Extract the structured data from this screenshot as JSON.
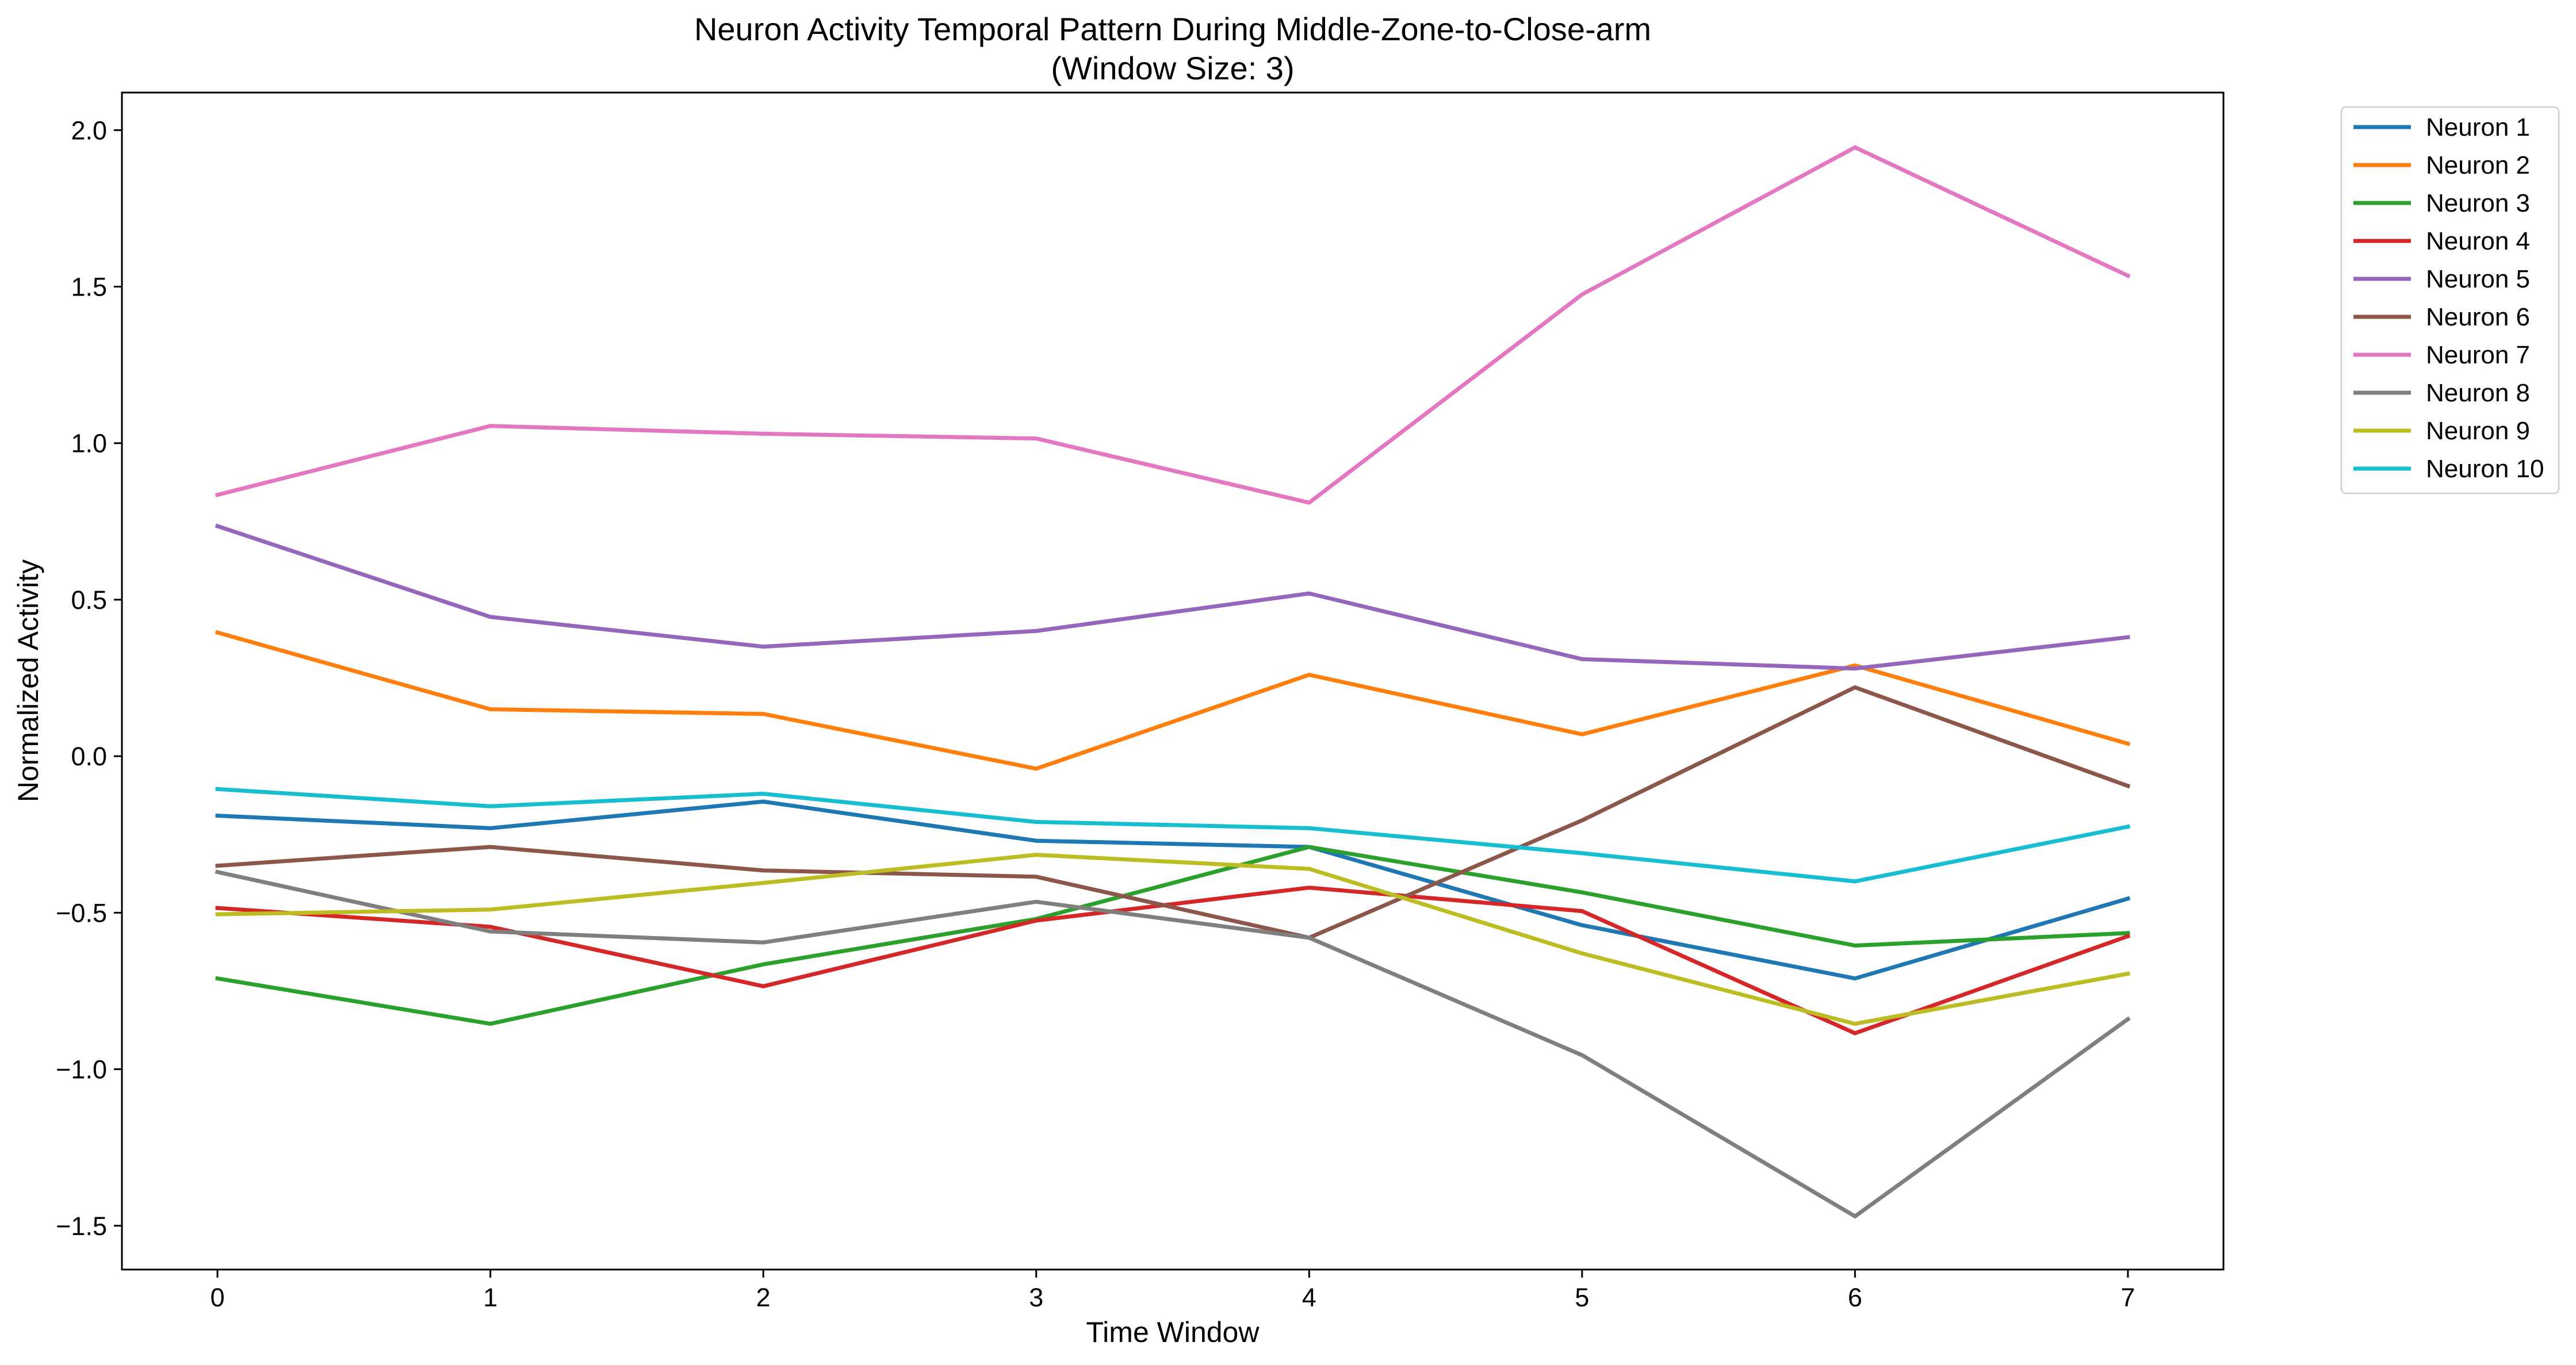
{
  "chart_data": {
    "type": "line",
    "title": "Neuron Activity Temporal Pattern During Middle-Zone-to-Close-arm",
    "subtitle": "(Window Size: 3)",
    "xlabel": "Time Window",
    "ylabel": "Normalized Activity",
    "x": [
      0,
      1,
      2,
      3,
      4,
      5,
      6,
      7
    ],
    "x_ticks": [
      "0",
      "1",
      "2",
      "3",
      "4",
      "5",
      "6",
      "7"
    ],
    "xlim": [
      -0.35,
      7.35
    ],
    "y_ticks": [
      "2.0",
      "1.5",
      "1.0",
      "0.5",
      "0.0",
      "−0.5",
      "−1.0",
      "−1.5"
    ],
    "y_tick_values": [
      2.0,
      1.5,
      1.0,
      0.5,
      0.0,
      -0.5,
      -1.0,
      -1.5
    ],
    "ylim": [
      -1.64,
      2.12
    ],
    "grid": false,
    "legend_position": "outside-top-right",
    "series": [
      {
        "name": "Neuron 1",
        "color": "#1f77b4",
        "values": [
          -0.19,
          -0.23,
          -0.145,
          -0.27,
          -0.29,
          -0.54,
          -0.71,
          -0.455
        ]
      },
      {
        "name": "Neuron 2",
        "color": "#ff7f0e",
        "values": [
          0.395,
          0.15,
          0.135,
          -0.04,
          0.26,
          0.07,
          0.29,
          0.04
        ]
      },
      {
        "name": "Neuron 3",
        "color": "#2ca02c",
        "values": [
          -0.71,
          -0.855,
          -0.665,
          -0.52,
          -0.29,
          -0.435,
          -0.605,
          -0.565
        ]
      },
      {
        "name": "Neuron 4",
        "color": "#d62728",
        "values": [
          -0.485,
          -0.545,
          -0.735,
          -0.525,
          -0.42,
          -0.495,
          -0.885,
          -0.575
        ]
      },
      {
        "name": "Neuron 5",
        "color": "#9467bd",
        "values": [
          0.735,
          0.445,
          0.35,
          0.4,
          0.52,
          0.31,
          0.28,
          0.38
        ]
      },
      {
        "name": "Neuron 6",
        "color": "#8c564b",
        "values": [
          -0.35,
          -0.29,
          -0.365,
          -0.385,
          -0.58,
          -0.205,
          0.22,
          -0.095
        ]
      },
      {
        "name": "Neuron 7",
        "color": "#e377c2",
        "values": [
          0.835,
          1.055,
          1.03,
          1.015,
          0.81,
          1.475,
          1.945,
          1.535
        ]
      },
      {
        "name": "Neuron 8",
        "color": "#7f7f7f",
        "values": [
          -0.37,
          -0.56,
          -0.595,
          -0.465,
          -0.58,
          -0.955,
          -1.47,
          -0.84
        ]
      },
      {
        "name": "Neuron 9",
        "color": "#bcbd22",
        "values": [
          -0.505,
          -0.49,
          -0.405,
          -0.315,
          -0.36,
          -0.63,
          -0.855,
          -0.695
        ]
      },
      {
        "name": "Neuron 10",
        "color": "#17becf",
        "values": [
          -0.105,
          -0.16,
          -0.12,
          -0.21,
          -0.23,
          -0.31,
          -0.4,
          -0.225
        ]
      }
    ]
  }
}
